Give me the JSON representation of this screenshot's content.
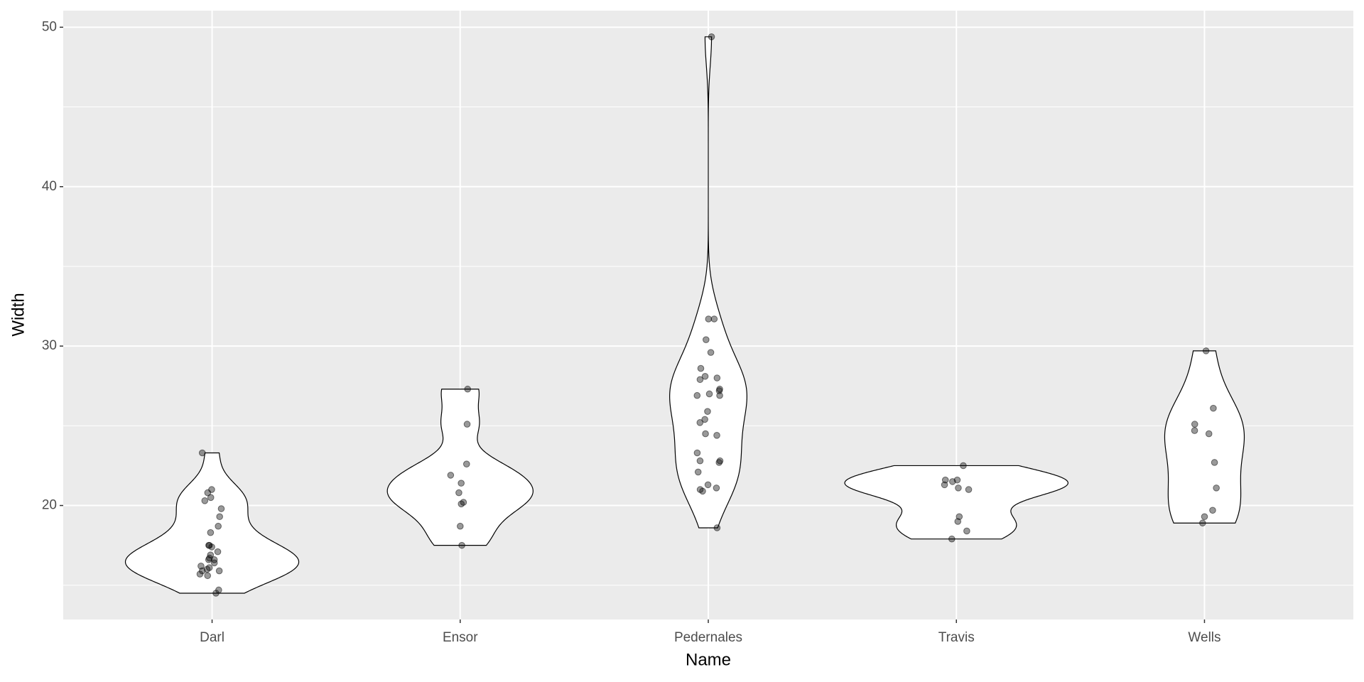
{
  "chart_data": {
    "type": "violin",
    "x_label": "Name",
    "y_label": "Width",
    "categories": [
      "Darl",
      "Ensor",
      "Pedernales",
      "Travis",
      "Wells"
    ],
    "values": [
      [
        23.3,
        21.0,
        20.8,
        20.5,
        20.3,
        19.8,
        19.3,
        18.7,
        18.3,
        17.4,
        17.5,
        17.5,
        17.1,
        16.9,
        16.7,
        16.6,
        16.6,
        16.4,
        16.2,
        16.1,
        15.9,
        16.0,
        15.9,
        15.7,
        15.6,
        14.5,
        14.7
      ],
      [
        27.3,
        25.1,
        22.6,
        21.9,
        21.4,
        20.8,
        20.2,
        20.1,
        18.7,
        17.5
      ],
      [
        49.4,
        31.7,
        31.7,
        30.4,
        29.6,
        28.6,
        28.1,
        28.0,
        27.9,
        27.3,
        27.2,
        27.0,
        26.9,
        26.9,
        25.9,
        25.4,
        25.2,
        24.5,
        24.4,
        23.3,
        22.8,
        22.8,
        22.7,
        22.1,
        21.3,
        21.1,
        20.9,
        21.0,
        18.6
      ],
      [
        22.5,
        21.6,
        21.6,
        21.5,
        21.3,
        21.1,
        21.0,
        19.3,
        19.0,
        18.4,
        17.9
      ],
      [
        29.7,
        26.1,
        25.1,
        24.5,
        24.7,
        22.7,
        21.1,
        19.7,
        19.3,
        18.9
      ]
    ],
    "violin_fill": "#ffffff",
    "point_color": "#000000",
    "ylim": [
      12.85,
      51.04
    ],
    "yticks": [
      20,
      30,
      40,
      50
    ],
    "yminor_ticks": [
      15,
      25,
      35,
      45
    ],
    "grid": true
  }
}
